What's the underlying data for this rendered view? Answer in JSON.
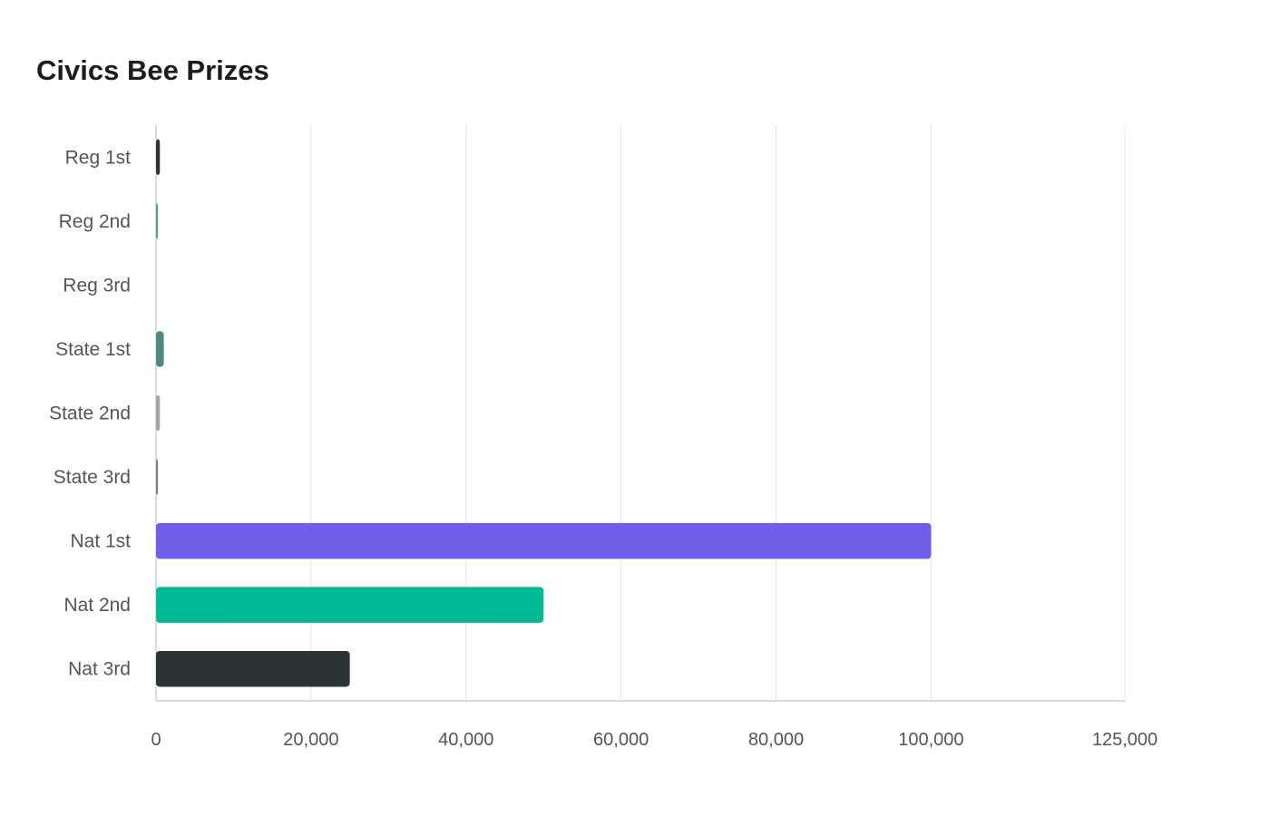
{
  "chart_data": {
    "type": "bar",
    "orientation": "horizontal",
    "title": "Civics Bee Prizes",
    "categories": [
      "Reg 1st",
      "Reg 2nd",
      "Reg 3rd",
      "State 1st",
      "State 2nd",
      "State 3rd",
      "Nat 1st",
      "Nat 2nd",
      "Nat 3rd"
    ],
    "values": [
      500,
      250,
      100,
      1000,
      500,
      250,
      100000,
      50000,
      25000
    ],
    "colors": [
      "#2f3336",
      "#5f9b8c",
      "#d9d9d9",
      "#4f8a7e",
      "#a6a6a6",
      "#808080",
      "#6f5ee8",
      "#00b894",
      "#2d3436"
    ],
    "xlim": [
      0,
      125000
    ],
    "xticks": [
      0,
      20000,
      40000,
      60000,
      80000,
      100000,
      125000
    ],
    "xtick_labels": [
      "0",
      "20,000",
      "40,000",
      "60,000",
      "80,000",
      "100,000",
      "125,000"
    ],
    "grid": true,
    "xlabel": "",
    "ylabel": ""
  }
}
